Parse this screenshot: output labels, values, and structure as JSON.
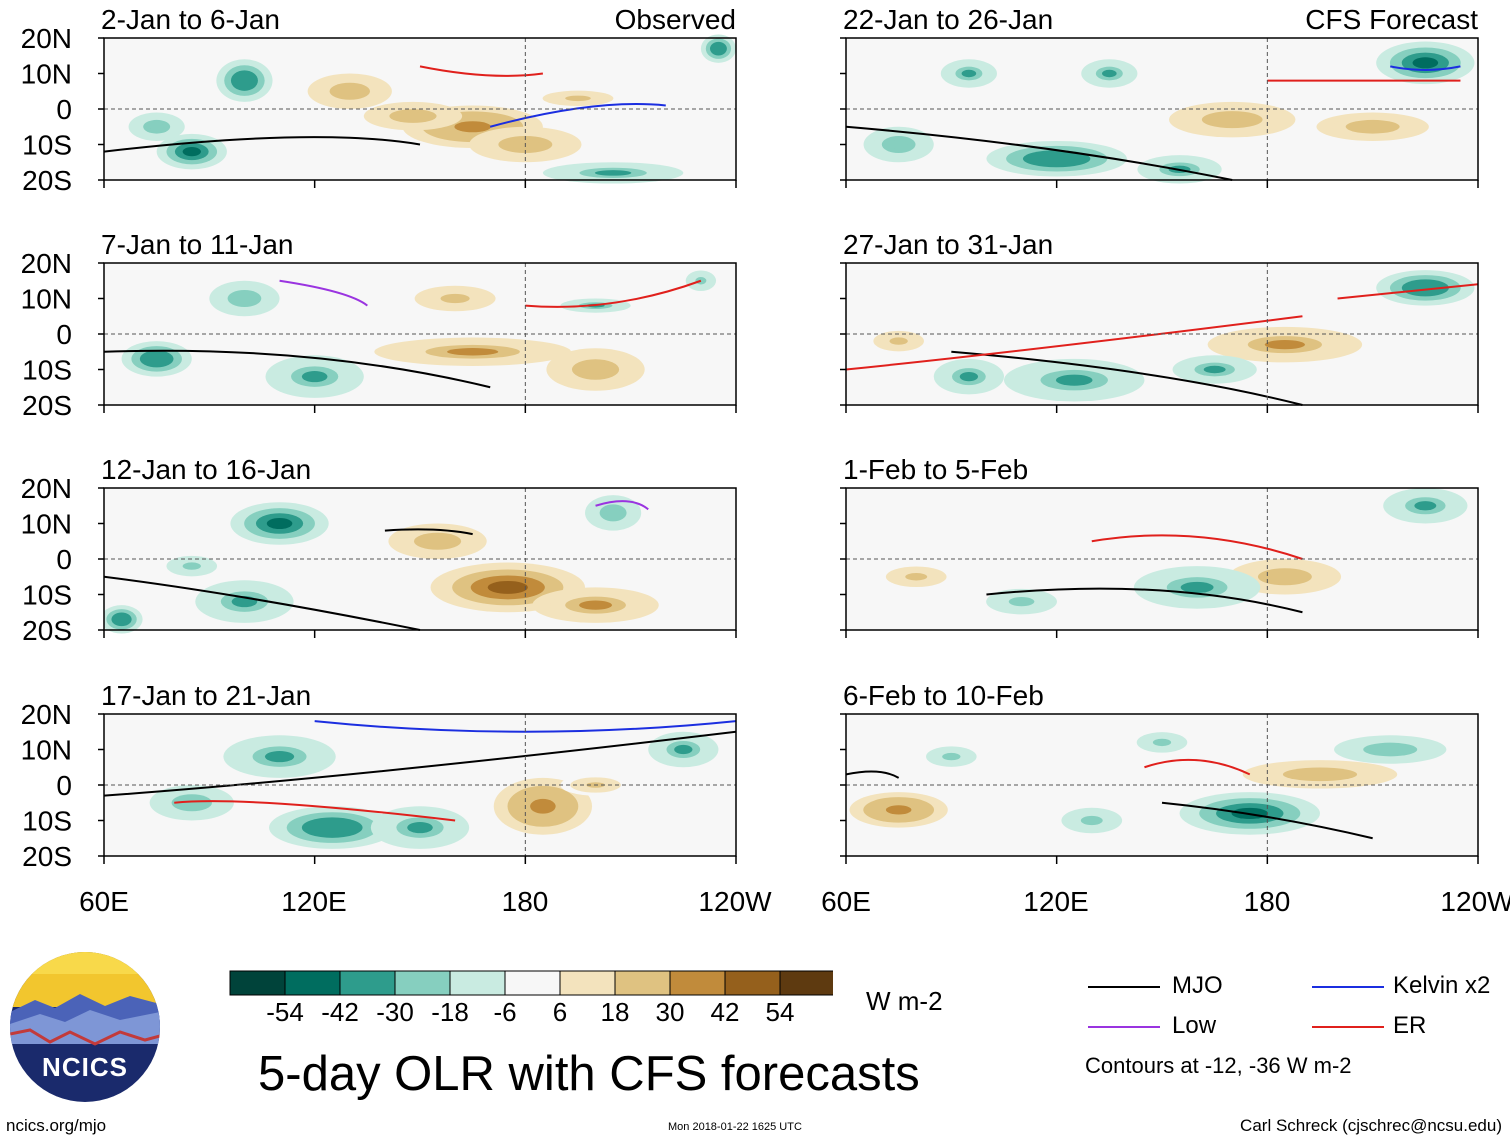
{
  "chart_data": {
    "type": "heatmap",
    "title": "5-day OLR with CFS forecasts",
    "variable": "OLR anomaly",
    "units": "W m-2",
    "x_ticks": [
      "60E",
      "120E",
      "180",
      "120W"
    ],
    "y_ticks": [
      "20N",
      "10N",
      "0",
      "10S",
      "20S"
    ],
    "x_range_deg": [
      60,
      240
    ],
    "y_range_deg": [
      -20,
      20
    ],
    "colorbar": {
      "levels": [
        -54,
        -42,
        -30,
        -18,
        -6,
        6,
        18,
        30,
        42,
        54
      ],
      "labels": [
        "-54",
        "-42",
        "-30",
        "-18",
        "-6",
        "6",
        "18",
        "30",
        "42",
        "54"
      ],
      "colors": [
        "#00433a",
        "#006d5f",
        "#2e9c8c",
        "#86cfbf",
        "#c9ebe1",
        "#f7f7f7",
        "#f3e3bd",
        "#dfc281",
        "#c18b3b",
        "#95601c",
        "#5e3a10"
      ]
    },
    "panels": [
      {
        "label": "2-Jan to 6-Jan",
        "source": "Observed",
        "anomalies": [
          [
            165,
            -5,
            20,
            6,
            40
          ],
          [
            148,
            -2,
            14,
            4,
            30
          ],
          [
            180,
            -10,
            16,
            5,
            30
          ],
          [
            130,
            5,
            12,
            5,
            25
          ],
          [
            85,
            -12,
            10,
            5,
            -45
          ],
          [
            100,
            8,
            8,
            6,
            -40
          ],
          [
            75,
            -5,
            8,
            4,
            -25
          ],
          [
            205,
            -18,
            20,
            3,
            -30
          ],
          [
            235,
            17,
            5,
            4,
            -40
          ],
          [
            195,
            3,
            14,
            3,
            20
          ]
        ],
        "contours": [
          [
            "mjo",
            60,
            -12,
            120,
            -5,
            150,
            -10
          ],
          [
            "er",
            150,
            12,
            170,
            8,
            185,
            10
          ],
          [
            "kelvin",
            170,
            -5,
            200,
            3,
            220,
            1
          ]
        ]
      },
      {
        "label": "7-Jan to 11-Jan",
        "source": "Observed",
        "anomalies": [
          [
            165,
            -5,
            28,
            4,
            35
          ],
          [
            200,
            -10,
            14,
            6,
            30
          ],
          [
            160,
            10,
            16,
            5,
            20
          ],
          [
            75,
            -7,
            10,
            5,
            -40
          ],
          [
            120,
            -12,
            14,
            6,
            -35
          ],
          [
            100,
            10,
            10,
            5,
            -25
          ],
          [
            200,
            8,
            10,
            2,
            -30
          ],
          [
            230,
            15,
            6,
            4,
            -20
          ]
        ],
        "contours": [
          [
            "mjo",
            60,
            -5,
            120,
            -3,
            170,
            -15
          ],
          [
            "er",
            180,
            8,
            205,
            6,
            230,
            15
          ],
          [
            "low",
            110,
            15,
            130,
            12,
            135,
            8
          ]
        ]
      },
      {
        "label": "12-Jan to 16-Jan",
        "source": "Observed",
        "anomalies": [
          [
            175,
            -8,
            22,
            7,
            45
          ],
          [
            200,
            -13,
            18,
            5,
            35
          ],
          [
            155,
            5,
            14,
            5,
            25
          ],
          [
            110,
            10,
            14,
            6,
            -45
          ],
          [
            100,
            -12,
            14,
            6,
            -35
          ],
          [
            65,
            -17,
            6,
            4,
            -40
          ],
          [
            205,
            13,
            8,
            5,
            -25
          ],
          [
            85,
            -2,
            10,
            4,
            -20
          ]
        ],
        "contours": [
          [
            "mjo",
            60,
            -5,
            100,
            -10,
            150,
            -20
          ],
          [
            "mjo",
            140,
            8,
            155,
            9,
            165,
            7
          ],
          [
            "low",
            200,
            15,
            210,
            18,
            215,
            14
          ]
        ]
      },
      {
        "label": "17-Jan to 21-Jan",
        "source": "Observed",
        "anomalies": [
          [
            185,
            -6,
            14,
            8,
            40
          ],
          [
            125,
            -12,
            18,
            6,
            -40
          ],
          [
            110,
            8,
            16,
            6,
            -35
          ],
          [
            85,
            -5,
            12,
            5,
            -25
          ],
          [
            225,
            10,
            10,
            5,
            -35
          ],
          [
            150,
            -12,
            14,
            6,
            -30
          ],
          [
            200,
            0,
            10,
            3,
            20
          ]
        ],
        "contours": [
          [
            "mjo",
            60,
            -3,
            130,
            2,
            240,
            15
          ],
          [
            "kelvin",
            120,
            18,
            180,
            12,
            240,
            18
          ],
          [
            "er",
            80,
            -5,
            100,
            -3,
            160,
            -10
          ]
        ]
      },
      {
        "label": "22-Jan to 26-Jan",
        "source": "CFS Forecast",
        "anomalies": [
          [
            170,
            -3,
            18,
            5,
            30
          ],
          [
            210,
            -5,
            16,
            4,
            25
          ],
          [
            120,
            -14,
            20,
            5,
            -40
          ],
          [
            225,
            13,
            14,
            6,
            -45
          ],
          [
            95,
            10,
            8,
            4,
            -35
          ],
          [
            135,
            10,
            8,
            4,
            -30
          ],
          [
            75,
            -10,
            10,
            5,
            -25
          ],
          [
            155,
            -17,
            12,
            4,
            -35
          ]
        ],
        "contours": [
          [
            "mjo",
            60,
            -5,
            120,
            -10,
            170,
            -20
          ],
          [
            "er",
            180,
            8,
            210,
            8,
            235,
            8
          ],
          [
            "kelvin",
            215,
            12,
            225,
            10,
            235,
            12
          ]
        ]
      },
      {
        "label": "27-Jan to 31-Jan",
        "source": "CFS Forecast",
        "anomalies": [
          [
            185,
            -3,
            22,
            5,
            35
          ],
          [
            75,
            -2,
            10,
            4,
            20
          ],
          [
            125,
            -13,
            20,
            6,
            -35
          ],
          [
            95,
            -12,
            10,
            5,
            -35
          ],
          [
            165,
            -10,
            12,
            4,
            -30
          ],
          [
            225,
            13,
            14,
            5,
            -40
          ]
        ],
        "contours": [
          [
            "mjo",
            90,
            -5,
            150,
            -10,
            190,
            -20
          ],
          [
            "er",
            60,
            -10,
            110,
            -5,
            190,
            5
          ],
          [
            "er",
            200,
            10,
            220,
            12,
            240,
            14
          ]
        ]
      },
      {
        "label": "1-Feb to 5-Feb",
        "source": "CFS Forecast",
        "anomalies": [
          [
            185,
            -5,
            16,
            5,
            30
          ],
          [
            80,
            -5,
            12,
            4,
            20
          ],
          [
            160,
            -8,
            18,
            6,
            -35
          ],
          [
            110,
            -12,
            14,
            5,
            -20
          ],
          [
            225,
            15,
            12,
            5,
            -30
          ]
        ],
        "contours": [
          [
            "mjo",
            100,
            -10,
            150,
            -5,
            190,
            -15
          ],
          [
            "er",
            130,
            5,
            160,
            10,
            190,
            0
          ]
        ]
      },
      {
        "label": "6-Feb to 10-Feb",
        "source": "CFS Forecast",
        "anomalies": [
          [
            75,
            -7,
            14,
            5,
            40
          ],
          [
            195,
            3,
            22,
            4,
            25
          ],
          [
            175,
            -8,
            20,
            6,
            -45
          ],
          [
            130,
            -10,
            12,
            5,
            -20
          ],
          [
            90,
            8,
            10,
            4,
            -20
          ],
          [
            215,
            10,
            16,
            4,
            -25
          ],
          [
            150,
            12,
            10,
            4,
            -20
          ]
        ],
        "contours": [
          [
            "mjo",
            150,
            -5,
            180,
            -8,
            210,
            -15
          ],
          [
            "er",
            145,
            5,
            160,
            10,
            175,
            3
          ],
          [
            "mjo",
            60,
            3,
            70,
            5,
            75,
            2
          ]
        ]
      }
    ],
    "legend": {
      "entries": [
        {
          "name": "MJO",
          "color": "#000000"
        },
        {
          "name": "Kelvin x2",
          "color": "#1b2ee0"
        },
        {
          "name": "Low",
          "color": "#9a34e0"
        },
        {
          "name": "ER",
          "color": "#e0201c"
        }
      ],
      "note": "Contours at -12, -36 W m-2",
      "placement": "bottom-right"
    }
  },
  "logo": {
    "text": "NCICS"
  },
  "footer": {
    "url": "ncics.org/mjo",
    "timestamp": "Mon 2018-01-22 1625 UTC",
    "author": "Carl Schreck (cjschrec@ncsu.edu)"
  }
}
